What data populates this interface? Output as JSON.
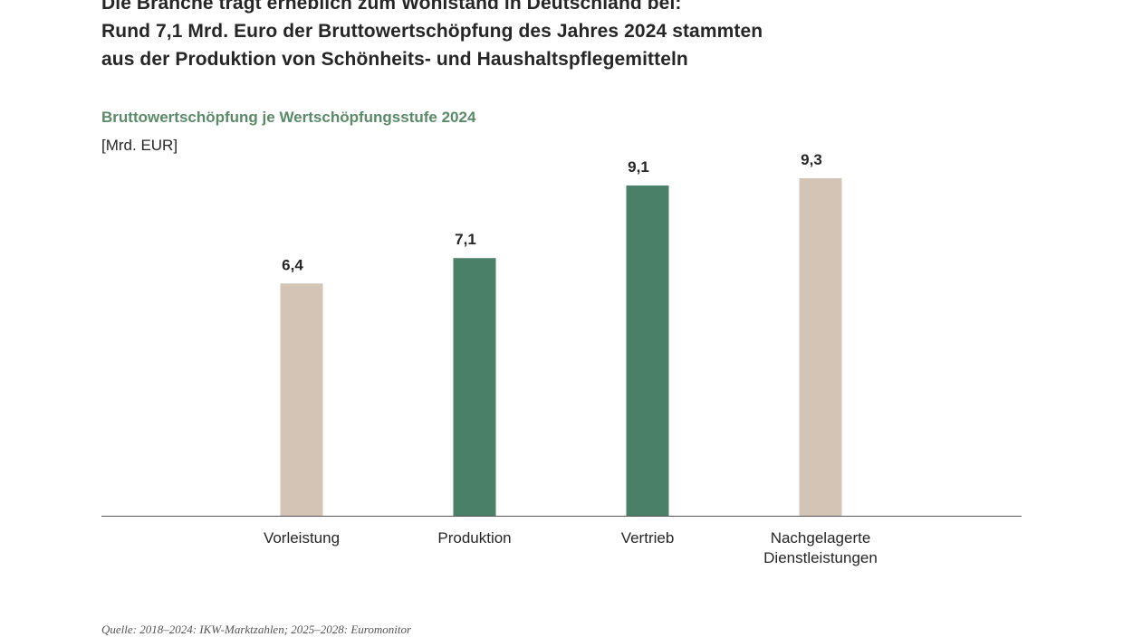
{
  "headline": {
    "line1": "Die Branche trägt erheblich zum Wohlstand in Deutschland bei:",
    "line2": "Rund 7,1 Mrd. Euro der Bruttowertschöpfung des Jahres 2024 stammten",
    "line3": "aus der Produktion von Schönheits- und Haushaltspflegemitteln"
  },
  "chart_data": {
    "type": "bar",
    "title": "Bruttowertschöpfung je Wertschöpfungsstufe 2024",
    "ylabel": "[Mrd. EUR]",
    "categories": [
      [
        "Vorleistung"
      ],
      [
        "Produktion"
      ],
      [
        "Vertrieb"
      ],
      [
        "Nachgelagerte",
        "Dienstleistungen"
      ]
    ],
    "values": [
      6.4,
      7.1,
      9.1,
      9.3
    ],
    "value_labels": [
      "6,4",
      "7,1",
      "9,1",
      "9,3"
    ],
    "colors": [
      "#d3c4b5",
      "#4a8068",
      "#4a8068",
      "#d3c4b5"
    ],
    "ylim": [
      0,
      9.3
    ],
    "grid": false,
    "legend": "none"
  },
  "source": "Quelle: 2018–2024: IKW-Marktzahlen; 2025–2028: Euromonitor"
}
